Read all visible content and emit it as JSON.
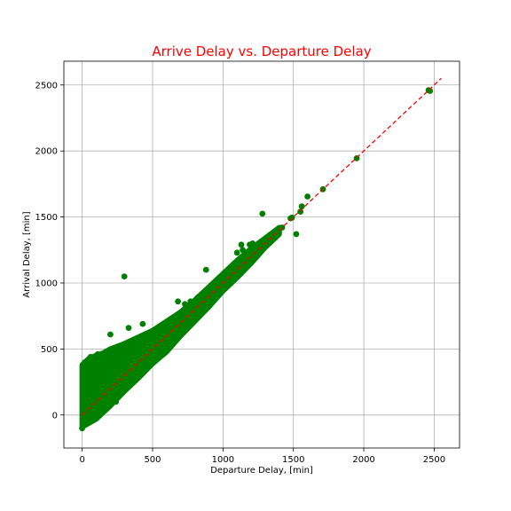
{
  "chart_data": {
    "type": "scatter",
    "title": "Arrive Delay vs. Departure Delay",
    "xlabel": "Departure Delay, [min]",
    "ylabel": "Arrival Delay, [min]",
    "xlim": [
      -130,
      2680
    ],
    "ylim": [
      -250,
      2680
    ],
    "xticks": [
      0,
      500,
      1000,
      1500,
      2000,
      2500
    ],
    "yticks": [
      0,
      500,
      1000,
      1500,
      2000,
      2500
    ],
    "grid": true,
    "point_color": "#008000",
    "reference_line": {
      "style": "dashed",
      "color": "#ff0000",
      "x": [
        0,
        2550
      ],
      "y": [
        0,
        2550
      ]
    },
    "dense_band": {
      "x": [
        0,
        50,
        100,
        150,
        200,
        300,
        400,
        500,
        600,
        700,
        800,
        900,
        1000,
        1100,
        1200,
        1300,
        1400
      ],
      "y_low": [
        -90,
        -60,
        -30,
        20,
        70,
        180,
        280,
        390,
        480,
        600,
        710,
        820,
        940,
        1040,
        1150,
        1270,
        1370
      ],
      "y_high": [
        380,
        430,
        450,
        470,
        500,
        540,
        590,
        640,
        710,
        780,
        870,
        970,
        1070,
        1170,
        1260,
        1340,
        1420
      ]
    },
    "points": [
      [
        2460,
        2460
      ],
      [
        2470,
        2455
      ],
      [
        1950,
        1945
      ],
      [
        1710,
        1710
      ],
      [
        1600,
        1655
      ],
      [
        1560,
        1580
      ],
      [
        1550,
        1540
      ],
      [
        1520,
        1370
      ],
      [
        1490,
        1495
      ],
      [
        1480,
        1490
      ],
      [
        1280,
        1525
      ],
      [
        1210,
        1300
      ],
      [
        1190,
        1290
      ],
      [
        1130,
        1290
      ],
      [
        1100,
        1230
      ],
      [
        880,
        1100
      ],
      [
        300,
        1050
      ],
      [
        680,
        860
      ],
      [
        730,
        840
      ],
      [
        650,
        710
      ],
      [
        430,
        690
      ],
      [
        330,
        660
      ],
      [
        200,
        610
      ],
      [
        260,
        520
      ],
      [
        240,
        100
      ],
      [
        450,
        360
      ],
      [
        620,
        700
      ],
      [
        560,
        620
      ],
      [
        770,
        860
      ],
      [
        930,
        960
      ],
      [
        1030,
        1040
      ],
      [
        1140,
        1250
      ],
      [
        1370,
        1390
      ],
      [
        1420,
        1420
      ],
      [
        0,
        -100
      ],
      [
        5,
        330
      ],
      [
        20,
        400
      ],
      [
        60,
        440
      ],
      [
        110,
        460
      ],
      [
        150,
        460
      ],
      [
        80,
        120
      ],
      [
        35,
        20
      ],
      [
        120,
        350
      ],
      [
        200,
        300
      ],
      [
        300,
        420
      ],
      [
        520,
        560
      ],
      [
        590,
        520
      ],
      [
        820,
        890
      ],
      [
        1020,
        1060
      ],
      [
        1260,
        1300
      ]
    ]
  }
}
